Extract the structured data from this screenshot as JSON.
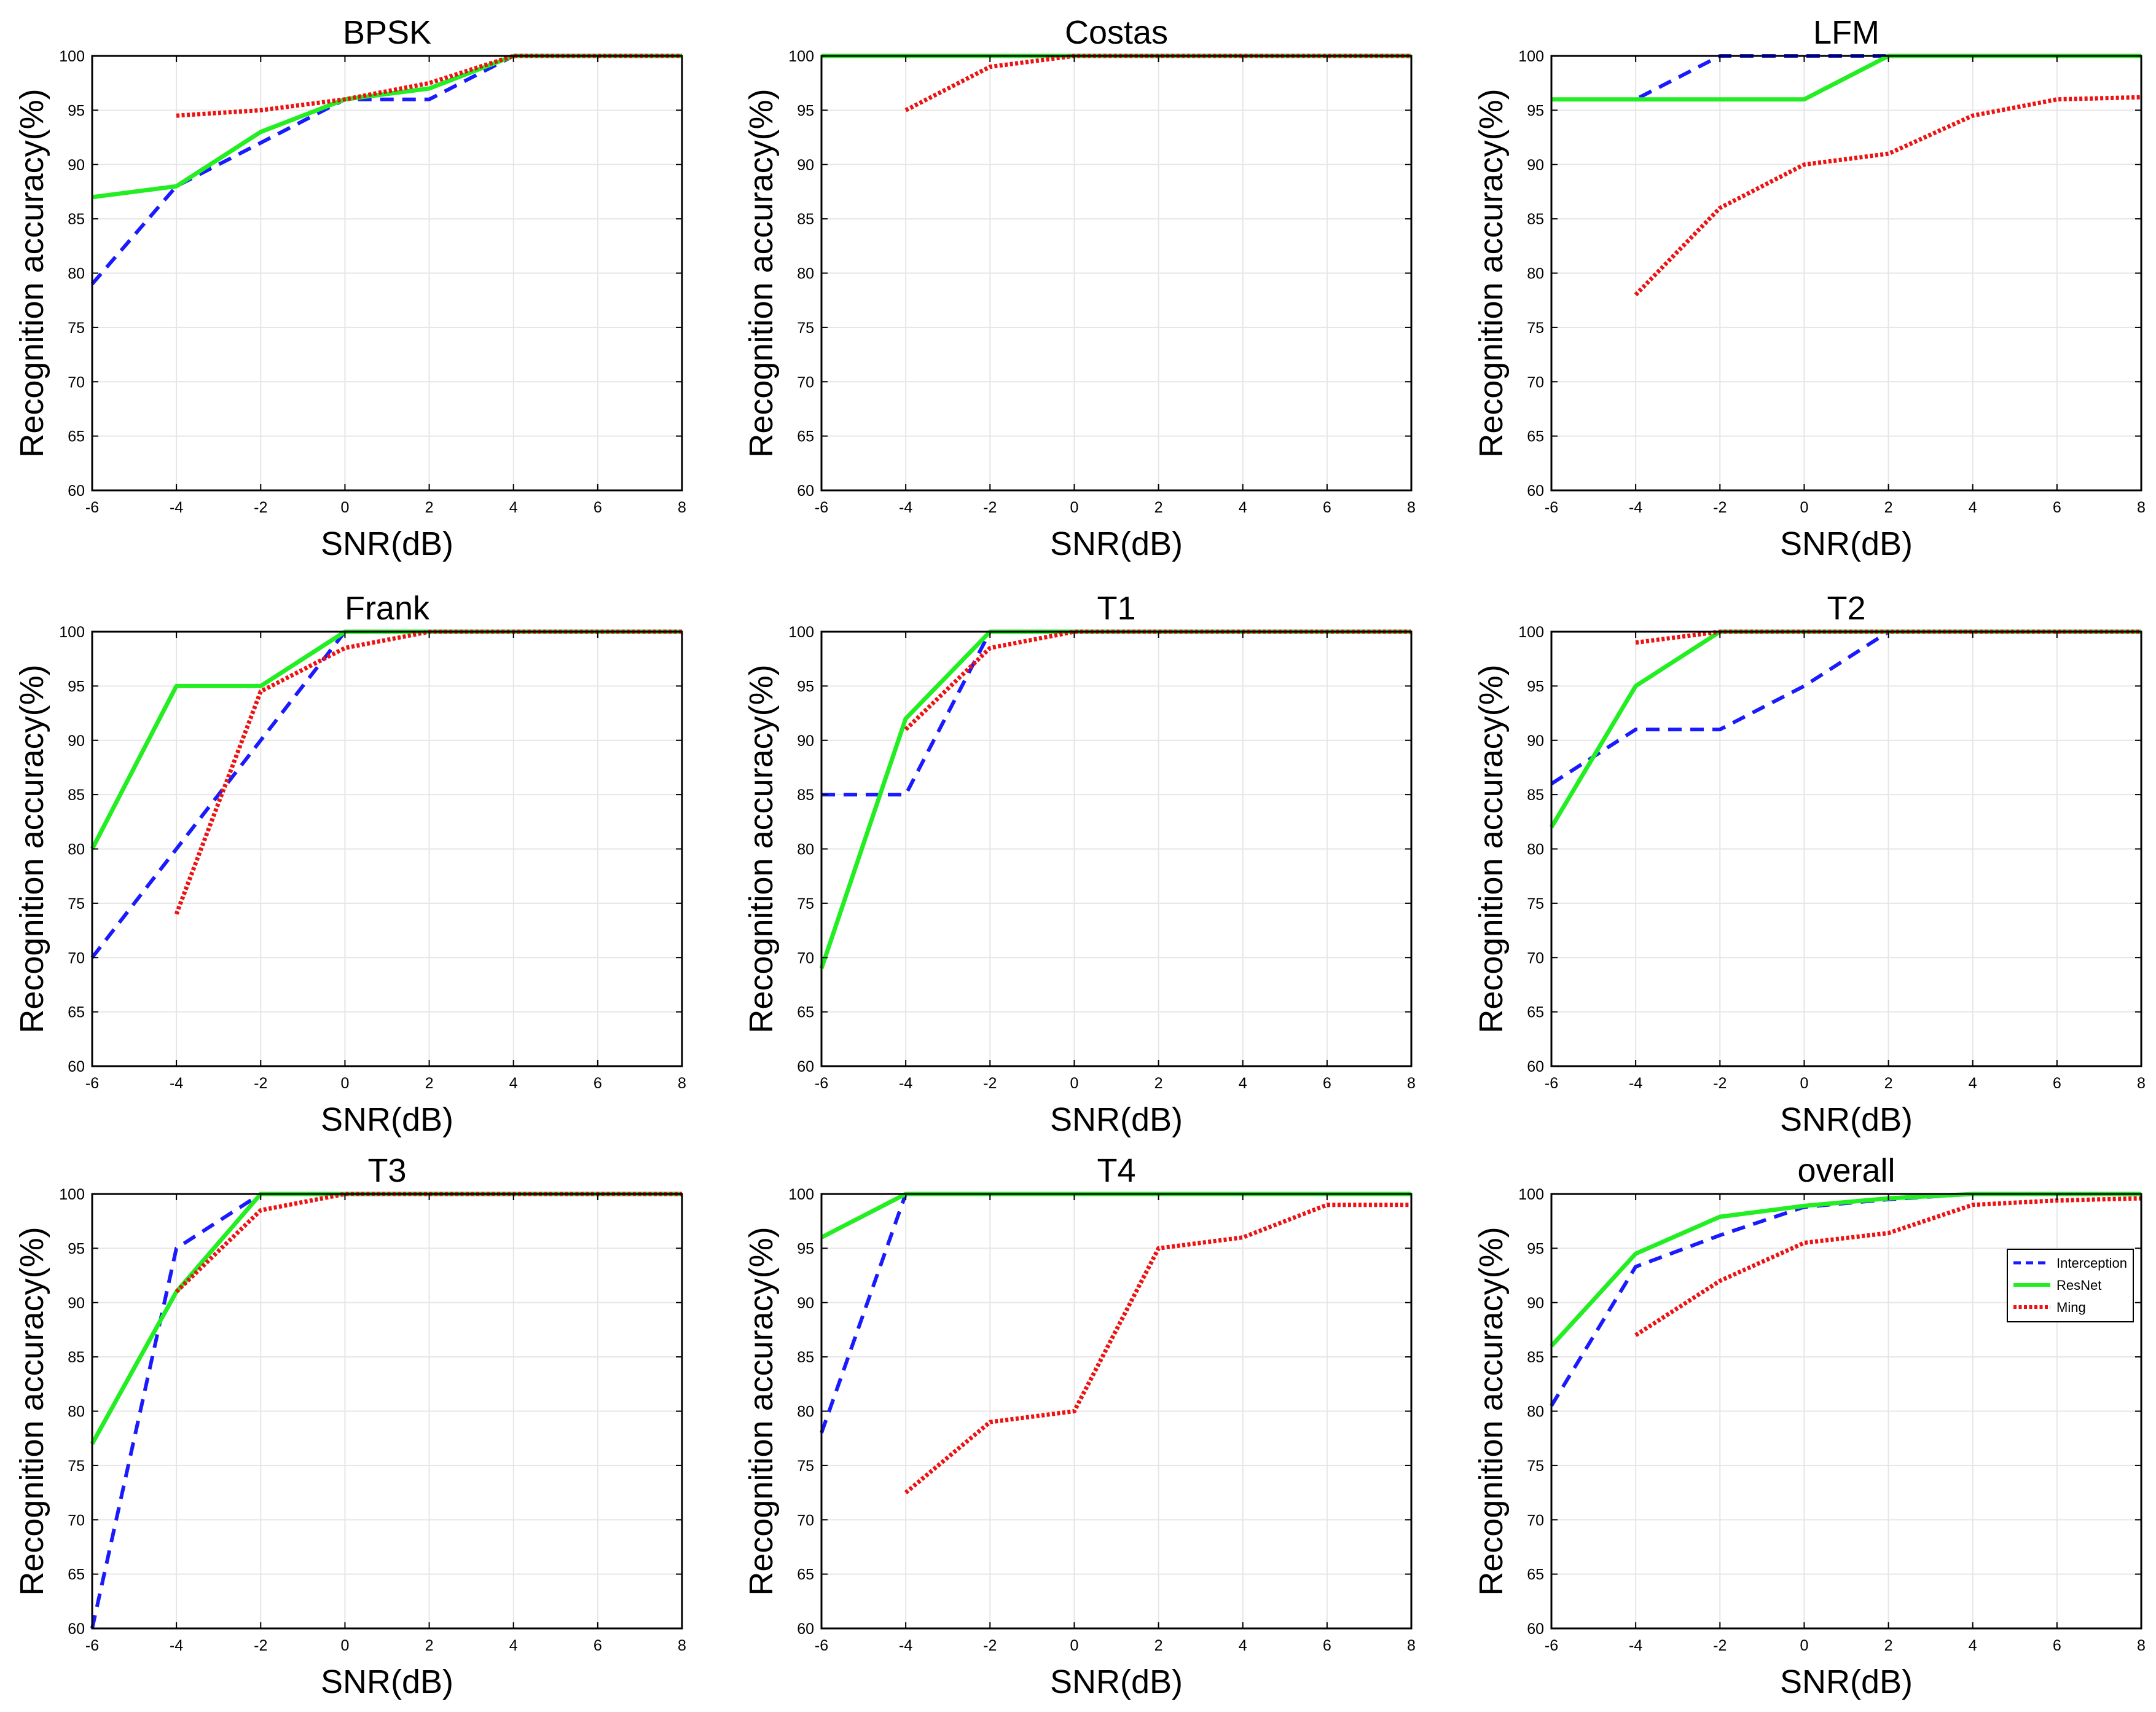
{
  "colors": {
    "Interception": "#1a1aff",
    "ResNet": "#22ee22",
    "Ming": "#ee1111",
    "grid": "#e6e6e6",
    "axis": "#000000"
  },
  "chart_data": [
    {
      "type": "line",
      "title": "BPSK",
      "xlabel": "SNR(dB)",
      "ylabel": "Recognition accuracy(%)",
      "xlim": [
        -6,
        8
      ],
      "ylim": [
        60,
        100
      ],
      "xticks": [
        "-6",
        "-4",
        "-2",
        "0",
        "2",
        "4",
        "6",
        "8"
      ],
      "yticks": [
        "60",
        "65",
        "70",
        "75",
        "80",
        "85",
        "90",
        "95",
        "100"
      ],
      "grid": true,
      "legend": null,
      "series": [
        {
          "name": "Interception",
          "x": [
            -6,
            -4,
            -2,
            0,
            2,
            4,
            6,
            8
          ],
          "values": [
            79,
            88,
            92,
            96,
            96,
            100,
            100,
            100
          ]
        },
        {
          "name": "ResNet",
          "x": [
            -6,
            -4,
            -2,
            0,
            2,
            4,
            6,
            8
          ],
          "values": [
            87,
            88,
            93,
            96,
            97,
            100,
            100,
            100
          ]
        },
        {
          "name": "Ming",
          "x": [
            -4,
            -2,
            0,
            2,
            4,
            6,
            8
          ],
          "values": [
            94.5,
            95,
            96,
            97.5,
            100,
            100,
            100
          ]
        }
      ]
    },
    {
      "type": "line",
      "title": "Costas",
      "xlabel": "SNR(dB)",
      "ylabel": "Recognition accuracy(%)",
      "xlim": [
        -6,
        8
      ],
      "ylim": [
        60,
        100
      ],
      "xticks": [
        "-6",
        "-4",
        "-2",
        "0",
        "2",
        "4",
        "6",
        "8"
      ],
      "yticks": [
        "60",
        "65",
        "70",
        "75",
        "80",
        "85",
        "90",
        "95",
        "100"
      ],
      "grid": true,
      "legend": null,
      "series": [
        {
          "name": "Interception",
          "x": [
            -6,
            -4,
            -2,
            0,
            2,
            4,
            6,
            8
          ],
          "values": [
            100,
            100,
            100,
            100,
            100,
            100,
            100,
            100
          ]
        },
        {
          "name": "ResNet",
          "x": [
            -6,
            -4,
            -2,
            0,
            2,
            4,
            6,
            8
          ],
          "values": [
            100,
            100,
            100,
            100,
            100,
            100,
            100,
            100
          ]
        },
        {
          "name": "Ming",
          "x": [
            -4,
            -2,
            0,
            2,
            4,
            6,
            8
          ],
          "values": [
            95,
            99,
            100,
            100,
            100,
            100,
            100
          ]
        }
      ]
    },
    {
      "type": "line",
      "title": "LFM",
      "xlabel": "SNR(dB)",
      "ylabel": "Recognition accuracy(%)",
      "xlim": [
        -6,
        8
      ],
      "ylim": [
        60,
        100
      ],
      "xticks": [
        "-6",
        "-4",
        "-2",
        "0",
        "2",
        "4",
        "6",
        "8"
      ],
      "yticks": [
        "60",
        "65",
        "70",
        "75",
        "80",
        "85",
        "90",
        "95",
        "100"
      ],
      "grid": true,
      "legend": null,
      "series": [
        {
          "name": "Interception",
          "x": [
            -6,
            -4,
            -2,
            0,
            2,
            4,
            6,
            8
          ],
          "values": [
            96,
            96,
            100,
            100,
            100,
            100,
            100,
            100
          ]
        },
        {
          "name": "ResNet",
          "x": [
            -6,
            -4,
            -2,
            0,
            2,
            4,
            6,
            8
          ],
          "values": [
            96,
            96,
            96,
            96,
            100,
            100,
            100,
            100
          ]
        },
        {
          "name": "Ming",
          "x": [
            -4,
            -2,
            0,
            2,
            4,
            6,
            8
          ],
          "values": [
            78,
            86,
            90,
            91,
            94.5,
            96,
            96.2
          ]
        }
      ]
    },
    {
      "type": "line",
      "title": "Frank",
      "xlabel": "SNR(dB)",
      "ylabel": "Recognition accuracy(%)",
      "xlim": [
        -6,
        8
      ],
      "ylim": [
        60,
        100
      ],
      "xticks": [
        "-6",
        "-4",
        "-2",
        "0",
        "2",
        "4",
        "6",
        "8"
      ],
      "yticks": [
        "60",
        "65",
        "70",
        "75",
        "80",
        "85",
        "90",
        "95",
        "100"
      ],
      "grid": true,
      "legend": null,
      "series": [
        {
          "name": "Interception",
          "x": [
            -6,
            -4,
            -2,
            0,
            2,
            4,
            6,
            8
          ],
          "values": [
            70,
            80,
            90,
            100,
            100,
            100,
            100,
            100
          ]
        },
        {
          "name": "ResNet",
          "x": [
            -6,
            -4,
            -2,
            0,
            2,
            4,
            6,
            8
          ],
          "values": [
            80,
            95,
            95,
            100,
            100,
            100,
            100,
            100
          ]
        },
        {
          "name": "Ming",
          "x": [
            -4,
            -2,
            0,
            2,
            4,
            6,
            8
          ],
          "values": [
            74,
            94.5,
            98.5,
            100,
            100,
            100,
            100
          ]
        }
      ]
    },
    {
      "type": "line",
      "title": "T1",
      "xlabel": "SNR(dB)",
      "ylabel": "Recognition accuracy(%)",
      "xlim": [
        -6,
        8
      ],
      "ylim": [
        60,
        100
      ],
      "xticks": [
        "-6",
        "-4",
        "-2",
        "0",
        "2",
        "4",
        "6",
        "8"
      ],
      "yticks": [
        "60",
        "65",
        "70",
        "75",
        "80",
        "85",
        "90",
        "95",
        "100"
      ],
      "grid": true,
      "legend": null,
      "series": [
        {
          "name": "Interception",
          "x": [
            -6,
            -4,
            -2,
            0,
            2,
            4,
            6,
            8
          ],
          "values": [
            85,
            85,
            100,
            100,
            100,
            100,
            100,
            100
          ]
        },
        {
          "name": "ResNet",
          "x": [
            -6,
            -4,
            -2,
            0,
            2,
            4,
            6,
            8
          ],
          "values": [
            69,
            92,
            100,
            100,
            100,
            100,
            100,
            100
          ]
        },
        {
          "name": "Ming",
          "x": [
            -4,
            -2,
            0,
            2,
            4,
            6,
            8
          ],
          "values": [
            91,
            98.5,
            100,
            100,
            100,
            100,
            100
          ]
        }
      ]
    },
    {
      "type": "line",
      "title": "T2",
      "xlabel": "SNR(dB)",
      "ylabel": "Recognition accuracy(%)",
      "xlim": [
        -6,
        8
      ],
      "ylim": [
        60,
        100
      ],
      "xticks": [
        "-6",
        "-4",
        "-2",
        "0",
        "2",
        "4",
        "6",
        "8"
      ],
      "yticks": [
        "60",
        "65",
        "70",
        "75",
        "80",
        "85",
        "90",
        "95",
        "100"
      ],
      "grid": true,
      "legend": null,
      "series": [
        {
          "name": "Interception",
          "x": [
            -6,
            -4,
            -2,
            0,
            2,
            4,
            6,
            8
          ],
          "values": [
            86,
            91,
            91,
            95,
            100,
            100,
            100,
            100
          ]
        },
        {
          "name": "ResNet",
          "x": [
            -6,
            -4,
            -2,
            0,
            2,
            4,
            6,
            8
          ],
          "values": [
            82,
            95,
            100,
            100,
            100,
            100,
            100,
            100
          ]
        },
        {
          "name": "Ming",
          "x": [
            -4,
            -2,
            0,
            2,
            4,
            6,
            8
          ],
          "values": [
            99,
            100,
            100,
            100,
            100,
            100,
            100
          ]
        }
      ]
    },
    {
      "type": "line",
      "title": "T3",
      "xlabel": "SNR(dB)",
      "ylabel": "Recognition accuracy(%)",
      "xlim": [
        -6,
        8
      ],
      "ylim": [
        60,
        100
      ],
      "xticks": [
        "-6",
        "-4",
        "-2",
        "0",
        "2",
        "4",
        "6",
        "8"
      ],
      "yticks": [
        "60",
        "65",
        "70",
        "75",
        "80",
        "85",
        "90",
        "95",
        "100"
      ],
      "grid": true,
      "legend": null,
      "series": [
        {
          "name": "Interception",
          "x": [
            -6,
            -4,
            -2,
            0,
            2,
            4,
            6,
            8
          ],
          "values": [
            60,
            95,
            100,
            100,
            100,
            100,
            100,
            100
          ]
        },
        {
          "name": "ResNet",
          "x": [
            -6,
            -4,
            -2,
            0,
            2,
            4,
            6,
            8
          ],
          "values": [
            77,
            91,
            100,
            100,
            100,
            100,
            100,
            100
          ]
        },
        {
          "name": "Ming",
          "x": [
            -4,
            -2,
            0,
            2,
            4,
            6,
            8
          ],
          "values": [
            91,
            98.5,
            100,
            100,
            100,
            100,
            100
          ]
        }
      ]
    },
    {
      "type": "line",
      "title": "T4",
      "xlabel": "SNR(dB)",
      "ylabel": "Recognition accuracy(%)",
      "xlim": [
        -6,
        8
      ],
      "ylim": [
        60,
        100
      ],
      "xticks": [
        "-6",
        "-4",
        "-2",
        "0",
        "2",
        "4",
        "6",
        "8"
      ],
      "yticks": [
        "60",
        "65",
        "70",
        "75",
        "80",
        "85",
        "90",
        "95",
        "100"
      ],
      "grid": true,
      "legend": null,
      "series": [
        {
          "name": "Interception",
          "x": [
            -6,
            -4,
            -2,
            0,
            2,
            4,
            6,
            8
          ],
          "values": [
            78,
            100,
            100,
            100,
            100,
            100,
            100,
            100
          ]
        },
        {
          "name": "ResNet",
          "x": [
            -6,
            -4,
            -2,
            0,
            2,
            4,
            6,
            8
          ],
          "values": [
            96,
            100,
            100,
            100,
            100,
            100,
            100,
            100
          ]
        },
        {
          "name": "Ming",
          "x": [
            -4,
            -2,
            0,
            2,
            4,
            6,
            8
          ],
          "values": [
            72.5,
            79,
            80,
            95,
            96,
            99,
            99
          ]
        }
      ]
    },
    {
      "type": "line",
      "title": "overall",
      "xlabel": "SNR(dB)",
      "ylabel": "Recognition accuracy(%)",
      "xlim": [
        -6,
        8
      ],
      "ylim": [
        60,
        100
      ],
      "xticks": [
        "-6",
        "-4",
        "-2",
        "0",
        "2",
        "4",
        "6",
        "8"
      ],
      "yticks": [
        "60",
        "65",
        "70",
        "75",
        "80",
        "85",
        "90",
        "95",
        "100"
      ],
      "grid": true,
      "legend": "right",
      "series": [
        {
          "name": "Interception",
          "x": [
            -6,
            -4,
            -2,
            0,
            2,
            4,
            6,
            8
          ],
          "values": [
            80.5,
            93.3,
            96.2,
            98.8,
            99.5,
            100,
            100,
            100
          ]
        },
        {
          "name": "ResNet",
          "x": [
            -6,
            -4,
            -2,
            0,
            2,
            4,
            6,
            8
          ],
          "values": [
            86,
            94.5,
            97.9,
            98.9,
            99.6,
            100,
            100,
            100
          ]
        },
        {
          "name": "Ming",
          "x": [
            -4,
            -2,
            0,
            2,
            4,
            6,
            8
          ],
          "values": [
            87,
            92,
            95.5,
            96.4,
            99,
            99.4,
            99.6
          ]
        }
      ]
    }
  ]
}
